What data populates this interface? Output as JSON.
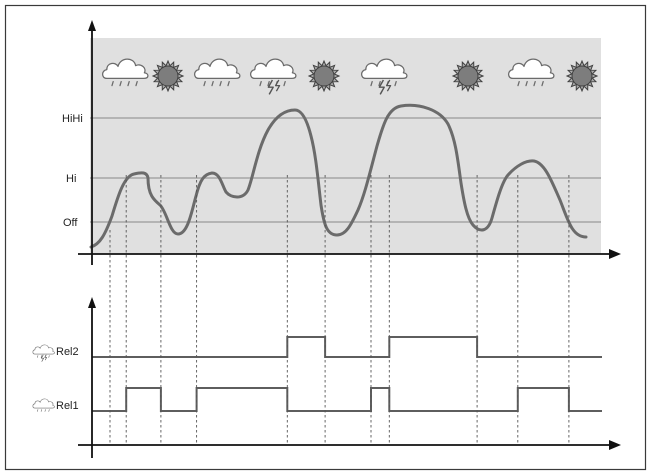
{
  "colors": {
    "frame": "#3a3a3a",
    "panel_background": "#e0e0e0",
    "curve": "#6b6b6b",
    "threshold_line": "#9a9a9a",
    "relay_line": "#5e5e5e",
    "axis": "#111111",
    "cloud_fill": "#ffffff",
    "cloud_stroke": "#6b6b6b",
    "sun_fill": "#7d7d7d",
    "sun_stroke": "#3f3f3f"
  },
  "levels": {
    "hihi_label": "HiHi",
    "hi_label": "Hi",
    "off_label": "Off"
  },
  "weather_icons": [
    "rain-cloud-icon",
    "sun-icon",
    "rain-cloud-icon",
    "storm-cloud-icon",
    "sun-icon",
    "storm-cloud-icon",
    "sun-icon",
    "rain-cloud-icon",
    "sun-icon"
  ],
  "relays": [
    {
      "label": "Rel2",
      "icon": "storm-cloud-icon",
      "switch_times": [
        0.383,
        0.457,
        0.583,
        0.755
      ],
      "initial_state": 0
    },
    {
      "label": "Rel1",
      "icon": "rain-cloud-icon",
      "switch_times": [
        0.067,
        0.135,
        0.205,
        0.383,
        0.547,
        0.583,
        0.835,
        0.935
      ],
      "initial_state": 0
    }
  ]
}
